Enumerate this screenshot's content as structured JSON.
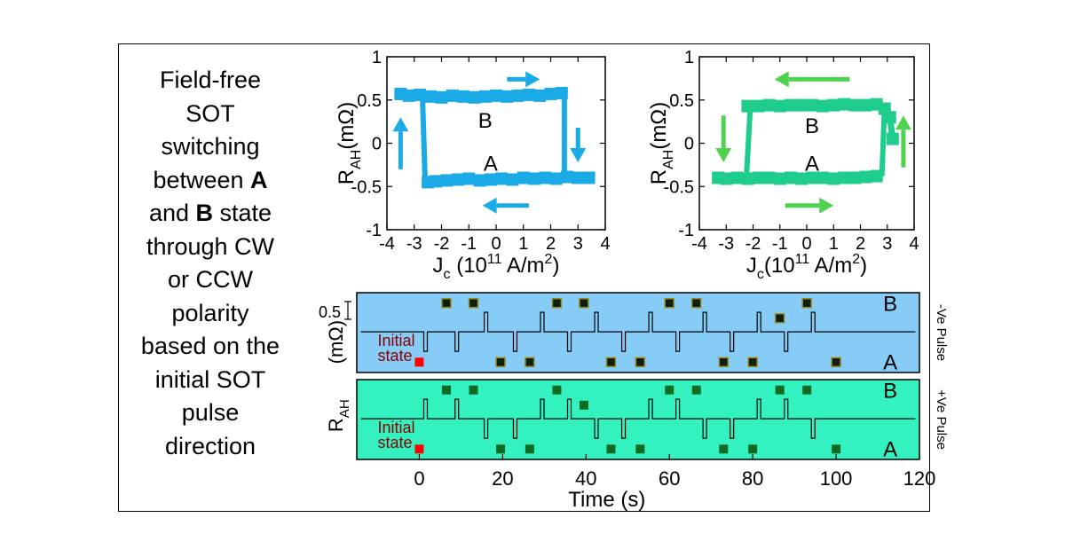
{
  "caption": {
    "l1": "Field-free",
    "l2": "SOT",
    "l3": "switching",
    "l4a": "between ",
    "l4b": "A",
    "l5a": "and ",
    "l5b": "B",
    "l5c": " state",
    "l6": "through CW",
    "l7": "or CCW",
    "l8": "polarity",
    "l9": "based on the",
    "l10": "initial SOT",
    "l11": "pulse",
    "l12": "direction"
  },
  "colors": {
    "blue_loop": "#1aaae6",
    "green_loop": "#1ecc8c",
    "green_arrow": "#4fd24f",
    "blue_bg": "#87cbf7",
    "green_bg": "#33f2bf",
    "marker_fill": "#0d1f0d",
    "marker_blue_edge": "#9a8a2a",
    "marker_green": "#0f6b22",
    "initial_marker": "#ff0000",
    "initial_text": "#8b0000"
  },
  "chart_data": [
    {
      "type": "line",
      "name": "hysteresis-left",
      "ylabel_main": "R",
      "ylabel_sub": "AH",
      "ylabel_unit": "(mΩ)",
      "xlabel_main": "J",
      "xlabel_sub": "c",
      "xlabel_unit_a": " (10",
      "xlabel_unit_exp": "11",
      "xlabel_unit_b": " A/m",
      "xlabel_unit_exp2": "2",
      "xlabel_unit_c": ")",
      "xlim": [
        -4,
        4
      ],
      "ylim": [
        -1,
        1
      ],
      "xticks": [
        "-4",
        "-3",
        "-2",
        "-1",
        "0",
        "1",
        "2",
        "3",
        "4"
      ],
      "yticks": [
        "-1",
        "-0.5",
        "0",
        "0.5",
        "1"
      ],
      "state_labels": [
        "B",
        "A"
      ],
      "loop_direction": "CW",
      "switch_positive": 2.5,
      "switch_negative": -2.6,
      "upper_branch": [
        [
          -3.5,
          0.57
        ],
        [
          -3.2,
          0.55
        ],
        [
          -2.8,
          0.56
        ],
        [
          -2.4,
          0.54
        ],
        [
          -2.0,
          0.53
        ],
        [
          -1.6,
          0.55
        ],
        [
          -1.2,
          0.54
        ],
        [
          -0.8,
          0.53
        ],
        [
          -0.4,
          0.54
        ],
        [
          0.0,
          0.55
        ],
        [
          0.4,
          0.54
        ],
        [
          0.8,
          0.55
        ],
        [
          1.2,
          0.56
        ],
        [
          1.6,
          0.55
        ],
        [
          2.0,
          0.57
        ],
        [
          2.4,
          0.58
        ]
      ],
      "lower_branch": [
        [
          -2.5,
          -0.45
        ],
        [
          -2.2,
          -0.44
        ],
        [
          -1.8,
          -0.43
        ],
        [
          -1.4,
          -0.42
        ],
        [
          -1.0,
          -0.41
        ],
        [
          -0.6,
          -0.43
        ],
        [
          -0.2,
          -0.42
        ],
        [
          0.2,
          -0.41
        ],
        [
          0.6,
          -0.42
        ],
        [
          1.0,
          -0.4
        ],
        [
          1.4,
          -0.41
        ],
        [
          1.8,
          -0.4
        ],
        [
          2.2,
          -0.41
        ],
        [
          2.6,
          -0.39
        ],
        [
          3.0,
          -0.4
        ],
        [
          3.4,
          -0.4
        ]
      ]
    },
    {
      "type": "line",
      "name": "hysteresis-right",
      "ylabel_main": "R",
      "ylabel_sub": "AH",
      "ylabel_unit": "(mΩ)",
      "xlabel_main": "J",
      "xlabel_sub": "c",
      "xlabel_unit_a": "(10",
      "xlabel_unit_exp": "11",
      "xlabel_unit_b": " A/m",
      "xlabel_unit_exp2": "2",
      "xlabel_unit_c": ")",
      "xlim": [
        -4,
        4
      ],
      "ylim": [
        -1,
        1
      ],
      "xticks": [
        "-4",
        "-3",
        "-2",
        "-1",
        "0",
        "1",
        "2",
        "3",
        "4"
      ],
      "yticks": [
        "-1",
        "-0.5",
        "0",
        "0.5",
        "1"
      ],
      "state_labels": [
        "B",
        "A"
      ],
      "loop_direction": "CCW",
      "switch_positive": 2.8,
      "switch_negative": -2.1,
      "upper_branch": [
        [
          -2.2,
          0.43
        ],
        [
          -1.8,
          0.43
        ],
        [
          -1.4,
          0.44
        ],
        [
          -1.0,
          0.43
        ],
        [
          -0.6,
          0.44
        ],
        [
          -0.2,
          0.44
        ],
        [
          0.2,
          0.44
        ],
        [
          0.6,
          0.43
        ],
        [
          1.0,
          0.44
        ],
        [
          1.4,
          0.45
        ],
        [
          1.8,
          0.44
        ],
        [
          2.2,
          0.44
        ],
        [
          2.6,
          0.45
        ],
        [
          2.9,
          0.4
        ],
        [
          3.1,
          0.3
        ],
        [
          3.2,
          0.05
        ]
      ],
      "lower_branch": [
        [
          -3.3,
          -0.4
        ],
        [
          -3.0,
          -0.41
        ],
        [
          -2.6,
          -0.4
        ],
        [
          -2.2,
          -0.41
        ],
        [
          -1.8,
          -0.4
        ],
        [
          -1.4,
          -0.4
        ],
        [
          -1.0,
          -0.41
        ],
        [
          -0.6,
          -0.4
        ],
        [
          -0.2,
          -0.41
        ],
        [
          0.2,
          -0.4
        ],
        [
          0.6,
          -0.4
        ],
        [
          1.0,
          -0.41
        ],
        [
          1.4,
          -0.4
        ],
        [
          1.8,
          -0.4
        ],
        [
          2.2,
          -0.39
        ],
        [
          2.6,
          -0.38
        ]
      ]
    },
    {
      "type": "scatter",
      "name": "pulse-train",
      "xlabel": "Time (s)",
      "ylabel_main": "R",
      "ylabel_sub": "AH",
      "ylabel_unit": "(mΩ)",
      "scale_bar_label": "0.5",
      "xlim": [
        -15,
        120
      ],
      "xticks": [
        "0",
        "20",
        "40",
        "60",
        "80",
        "100",
        "120"
      ],
      "initial_label_1": "Initial",
      "initial_label_2": "state",
      "top_panel": {
        "side_label": "-Ve Pulse",
        "state_labels": [
          "B",
          "A"
        ],
        "pulse_times": [
          1.5,
          9,
          16,
          23,
          29.5,
          36,
          42.5,
          49,
          55.5,
          62,
          68.5,
          75,
          81.5,
          88,
          94.5
        ],
        "pulse_dirs": [
          "down",
          "down",
          "up",
          "down",
          "up",
          "down",
          "up",
          "down",
          "up",
          "down",
          "up",
          "down",
          "up",
          "down",
          "up"
        ],
        "points": [
          [
            0,
            "A"
          ],
          [
            6.5,
            "B"
          ],
          [
            13,
            "B"
          ],
          [
            19.5,
            "A"
          ],
          [
            26.5,
            "A"
          ],
          [
            33,
            "B"
          ],
          [
            39.5,
            "B"
          ],
          [
            46,
            "A"
          ],
          [
            53,
            "A"
          ],
          [
            60,
            "B"
          ],
          [
            66.5,
            "B"
          ],
          [
            73,
            "A"
          ],
          [
            80,
            "A"
          ],
          [
            86.5,
            "mid"
          ],
          [
            93,
            "B"
          ],
          [
            100,
            "A"
          ]
        ]
      },
      "bottom_panel": {
        "side_label": "+Ve Pulse",
        "state_labels": [
          "B",
          "A"
        ],
        "pulse_times": [
          1.5,
          9,
          16,
          23,
          29.5,
          36,
          42.5,
          49,
          55.5,
          62,
          68.5,
          75,
          81.5,
          88,
          94.5
        ],
        "pulse_dirs": [
          "up",
          "up",
          "down",
          "down",
          "up",
          "up",
          "down",
          "down",
          "up",
          "up",
          "down",
          "down",
          "up",
          "up",
          "down"
        ],
        "points": [
          [
            0,
            "A"
          ],
          [
            6.5,
            "B"
          ],
          [
            13,
            "B"
          ],
          [
            19.5,
            "A"
          ],
          [
            26.5,
            "A"
          ],
          [
            33,
            "B"
          ],
          [
            39.5,
            "mid"
          ],
          [
            46,
            "A"
          ],
          [
            53,
            "A"
          ],
          [
            60,
            "B"
          ],
          [
            66.5,
            "B"
          ],
          [
            73,
            "A"
          ],
          [
            80,
            "A"
          ],
          [
            86.5,
            "B"
          ],
          [
            93,
            "B"
          ],
          [
            100,
            "A"
          ]
        ]
      }
    }
  ]
}
